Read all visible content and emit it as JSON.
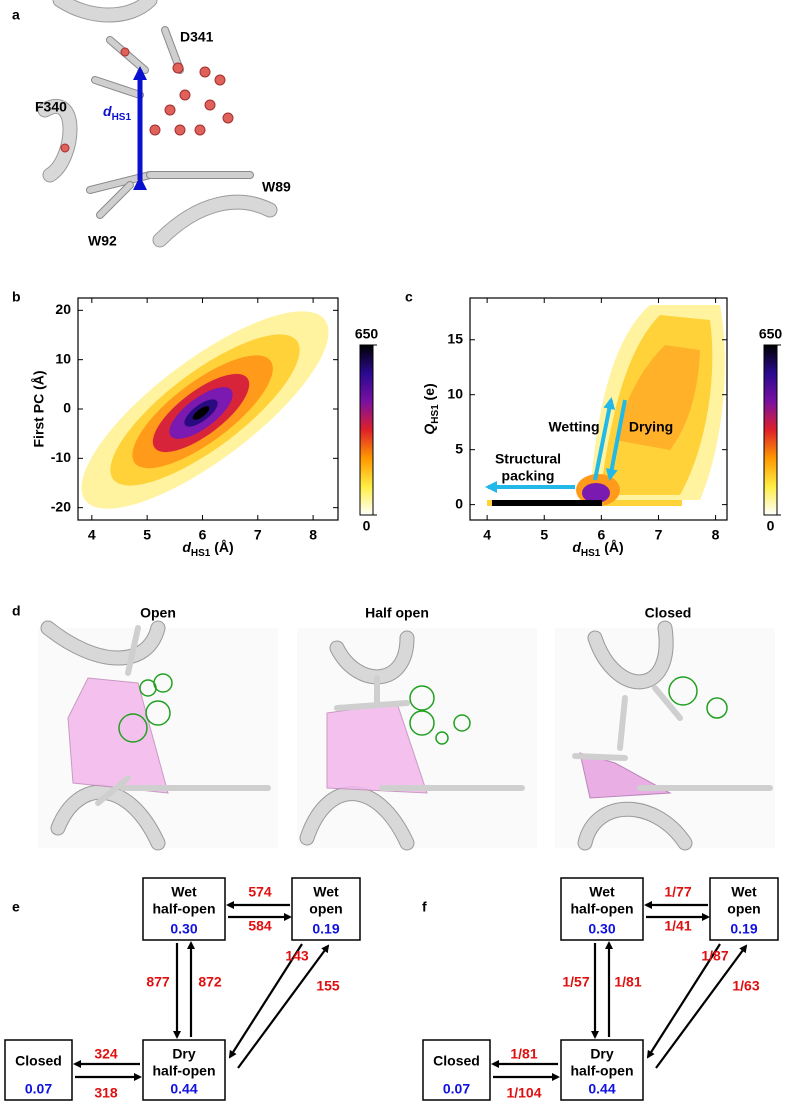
{
  "panel_labels": [
    "a",
    "b",
    "c",
    "d",
    "e",
    "f"
  ],
  "panel_a": {
    "labels": [
      "D341",
      "F340",
      "W89",
      "W92"
    ],
    "distance": {
      "symbol": "d",
      "subscript": "HS1"
    }
  },
  "chart_data": [
    {
      "type": "heatmap",
      "xlabel": {
        "symbol": "d",
        "subscript": "HS1",
        "unit": " (Å)"
      },
      "ylabel": "First PC (Å)",
      "xlim": [
        3.75,
        8.45
      ],
      "xticks": [
        4,
        5,
        6,
        7,
        8
      ],
      "ylim": [
        -22.5,
        22.5
      ],
      "yticks": [
        -20,
        -10,
        0,
        10,
        20
      ],
      "colorbar": {
        "lim": [
          0,
          650
        ],
        "ticks": [
          0,
          650
        ],
        "colors": [
          "#ffffff",
          "#ffee44",
          "#ff9900",
          "#e0202a",
          "#7a10a0",
          "#2a0a90",
          "#000000"
        ]
      }
    },
    {
      "type": "heatmap",
      "xlabel": {
        "symbol": "d",
        "subscript": "HS1",
        "unit": " (Å)"
      },
      "ylabel": {
        "symbol": "Q",
        "subscript": "HS1",
        "unit": " (e)"
      },
      "xlim": [
        3.7,
        8.2
      ],
      "xticks": [
        4,
        5,
        6,
        7,
        8
      ],
      "ylim": [
        -1.4,
        18.8
      ],
      "yticks": [
        0,
        5,
        10,
        15
      ],
      "colorbar": {
        "lim": [
          0,
          650
        ],
        "ticks": [
          0,
          650
        ],
        "colors": [
          "#ffffff",
          "#ffee44",
          "#ff9900",
          "#e0202a",
          "#7a10a0",
          "#2a0a90",
          "#000000"
        ]
      },
      "annotations": [
        "Wetting",
        "Drying",
        "Structural",
        "packing"
      ]
    }
  ],
  "panel_d": {
    "titles": [
      "Open",
      "Half open",
      "Closed"
    ]
  },
  "panel_e": {
    "nodes": [
      {
        "title": [
          "Wet",
          "half-open"
        ],
        "value": "0.30"
      },
      {
        "title": [
          "Wet",
          "open"
        ],
        "value": "0.19"
      },
      {
        "title": [
          "Closed"
        ],
        "value": "0.07"
      },
      {
        "title": [
          "Dry",
          "half-open"
        ],
        "value": "0.44"
      }
    ],
    "rates": [
      "574",
      "584",
      "877",
      "872",
      "143",
      "155",
      "324",
      "318"
    ]
  },
  "panel_f": {
    "nodes": [
      {
        "title": [
          "Wet",
          "half-open"
        ],
        "value": "0.30"
      },
      {
        "title": [
          "Wet",
          "open"
        ],
        "value": "0.19"
      },
      {
        "title": [
          "Closed"
        ],
        "value": "0.07"
      },
      {
        "title": [
          "Dry",
          "half-open"
        ],
        "value": "0.44"
      }
    ],
    "rates": [
      "1/77",
      "1/41",
      "1/57",
      "1/81",
      "1/87",
      "1/63",
      "1/81",
      "1/104"
    ]
  }
}
